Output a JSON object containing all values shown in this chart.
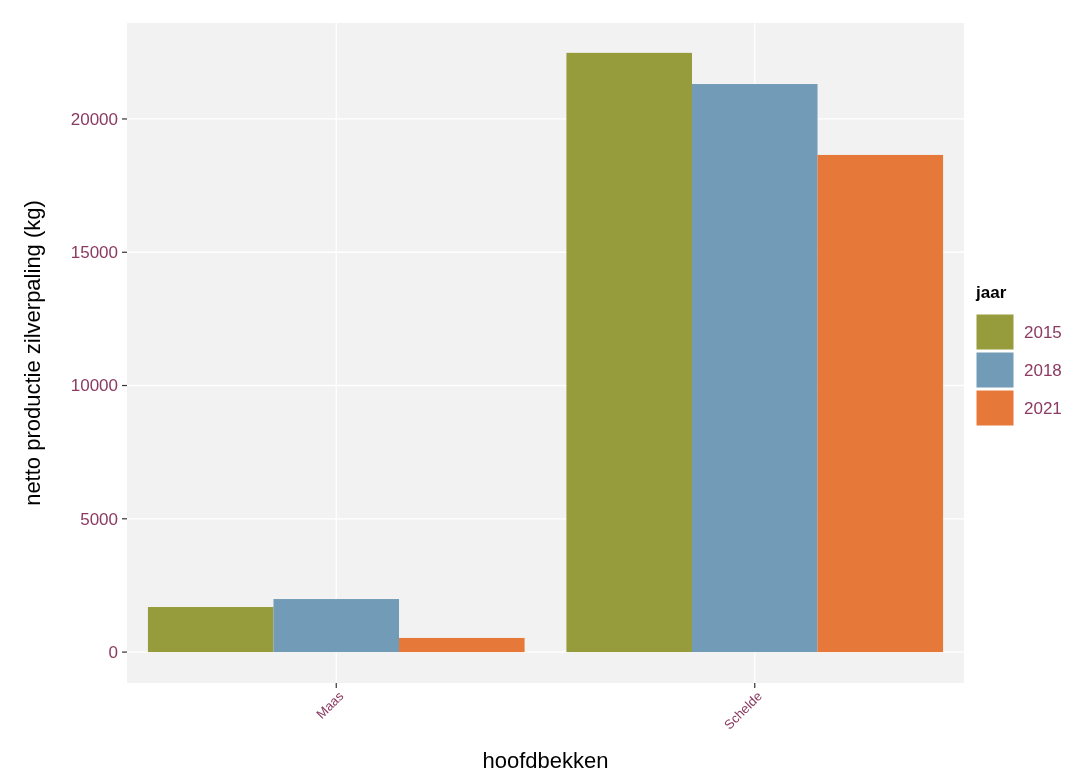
{
  "chart_data": {
    "type": "bar",
    "xlabel": "hoofdbekken",
    "ylabel": "netto productie zilverpaling (kg)",
    "legend_title": "jaar",
    "categories": [
      "Maas",
      "Schelde"
    ],
    "series": [
      {
        "name": "2015",
        "color": "#969b3b",
        "values": [
          1690,
          22480
        ]
      },
      {
        "name": "2018",
        "color": "#729bb7",
        "values": [
          1990,
          21310
        ]
      },
      {
        "name": "2021",
        "color": "#e6783a",
        "values": [
          530,
          18650
        ]
      }
    ],
    "ylim": [
      -1160,
      23600
    ],
    "yticks": [
      0,
      5000,
      10000,
      15000,
      20000
    ],
    "grid": true,
    "legend": "right"
  }
}
